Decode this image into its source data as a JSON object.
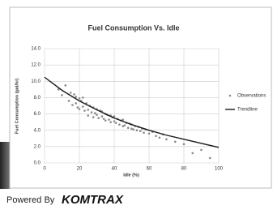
{
  "chart_data": {
    "type": "scatter",
    "title": "Fuel Consumption Vs. Idle",
    "x_label": "Idle (%)",
    "y_label": "Fuel Consumption (gal/hr)",
    "xlim": [
      0,
      100
    ],
    "xticks": [
      0,
      20,
      40,
      60,
      80,
      100
    ],
    "ylim": [
      0,
      14
    ],
    "yticks": [
      {
        "value": 0,
        "label": "0.0"
      },
      {
        "value": 2,
        "label": "2.0"
      },
      {
        "value": 4,
        "label": "4.0"
      },
      {
        "value": 6,
        "label": "6.0"
      },
      {
        "value": 8,
        "label": "8.0"
      },
      {
        "value": 10,
        "label": "10.0"
      },
      {
        "value": 12,
        "label": "12.0"
      },
      {
        "value": 14,
        "label": "14.0"
      }
    ],
    "grid": true,
    "legend": "right",
    "series": [
      {
        "name": "Observations",
        "color": "#8a8a8a",
        "marker": "point",
        "x": [
          8,
          10,
          12,
          14,
          15,
          16,
          17,
          18,
          18,
          19,
          20,
          20,
          21,
          22,
          22,
          23,
          24,
          25,
          25,
          26,
          27,
          28,
          28,
          29,
          30,
          30,
          31,
          32,
          33,
          33,
          34,
          35,
          35,
          36,
          37,
          38,
          38,
          39,
          40,
          40,
          41,
          42,
          43,
          44,
          45,
          45,
          46,
          47,
          48,
          49,
          50,
          50,
          51,
          52,
          53,
          54,
          55,
          56,
          57,
          58,
          60,
          62,
          64,
          66,
          68,
          70,
          75,
          80,
          85,
          90,
          95
        ],
        "values": [
          9.0,
          8.3,
          9.5,
          7.6,
          8.6,
          7.1,
          8.4,
          7.3,
          8.1,
          6.8,
          7.9,
          6.6,
          7.6,
          6.9,
          8.0,
          6.4,
          7.3,
          6.5,
          5.8,
          7.0,
          6.2,
          6.8,
          5.6,
          6.1,
          6.6,
          5.9,
          5.5,
          6.4,
          5.7,
          6.3,
          5.4,
          6.0,
          5.2,
          5.9,
          5.3,
          5.8,
          5.0,
          5.6,
          5.1,
          5.7,
          4.9,
          5.4,
          4.7,
          5.2,
          4.5,
          5.3,
          4.6,
          4.9,
          4.3,
          4.8,
          4.2,
          4.7,
          4.1,
          4.5,
          4.0,
          4.4,
          3.9,
          4.2,
          3.7,
          4.1,
          3.6,
          3.8,
          3.3,
          3.1,
          3.5,
          2.9,
          2.6,
          2.3,
          1.2,
          1.6,
          0.6
        ]
      },
      {
        "name": "Trendline",
        "color": "#1a1a1a",
        "marker": "line",
        "x": [
          0,
          10,
          20,
          30,
          40,
          50,
          60,
          70,
          80,
          90,
          100
        ],
        "values": [
          10.5,
          8.9,
          7.6,
          6.5,
          5.5,
          4.7,
          4.0,
          3.4,
          2.9,
          2.4,
          1.9
        ]
      }
    ]
  },
  "footer": {
    "prefix": "Powered By",
    "brand": "KOMTRAX"
  }
}
